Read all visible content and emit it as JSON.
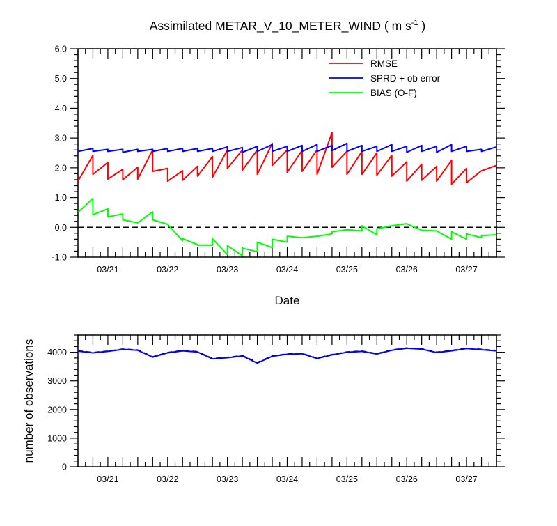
{
  "title": {
    "main": "Assimilated METAR_V_10_METER_WIND ( m s",
    "superscript": "-1",
    "close": " )"
  },
  "chart_data": [
    {
      "type": "line",
      "name": "top",
      "xlabel": "Date",
      "x_ticks": [
        "03/21",
        "03/22",
        "03/23",
        "03/24",
        "03/25",
        "03/26",
        "03/27"
      ],
      "x_tick_values": [
        0.5,
        1.5,
        2.5,
        3.5,
        4.5,
        5.5,
        6.5
      ],
      "xlim": [
        0,
        7
      ],
      "ylim": [
        -1.0,
        6.0
      ],
      "y_ticks": [
        "-1.0",
        "0.0",
        "1.0",
        "2.0",
        "3.0",
        "4.0",
        "5.0",
        "6.0"
      ],
      "reference_line": 0.0,
      "legend": {
        "placement": "top-right",
        "entries": [
          "RMSE",
          "SPRD + ob error",
          "BIAS (O-F)"
        ]
      },
      "series": [
        {
          "name": "RMSE",
          "color": "#ff0000",
          "points": [
            [
              0,
              1.55
            ],
            [
              0.25,
              2.42
            ],
            [
              0.25,
              1.78
            ],
            [
              0.5,
              2.18
            ],
            [
              0.5,
              1.62
            ],
            [
              0.75,
              1.95
            ],
            [
              0.75,
              1.6
            ],
            [
              1.0,
              2.02
            ],
            [
              1.0,
              1.62
            ],
            [
              1.25,
              2.6
            ],
            [
              1.25,
              1.88
            ],
            [
              1.5,
              1.98
            ],
            [
              1.5,
              1.55
            ],
            [
              1.75,
              1.9
            ],
            [
              1.75,
              1.58
            ],
            [
              2.0,
              2.05
            ],
            [
              2.0,
              1.72
            ],
            [
              2.25,
              2.38
            ],
            [
              2.25,
              1.68
            ],
            [
              2.5,
              2.6
            ],
            [
              2.5,
              1.98
            ],
            [
              2.75,
              2.6
            ],
            [
              2.75,
              1.92
            ],
            [
              3.0,
              2.6
            ],
            [
              3.0,
              1.78
            ],
            [
              3.25,
              2.82
            ],
            [
              3.25,
              2.08
            ],
            [
              3.5,
              2.6
            ],
            [
              3.5,
              1.85
            ],
            [
              3.75,
              2.58
            ],
            [
              3.75,
              1.88
            ],
            [
              4.0,
              2.6
            ],
            [
              4.0,
              1.78
            ],
            [
              4.25,
              3.18
            ],
            [
              4.25,
              2.02
            ],
            [
              4.5,
              2.55
            ],
            [
              4.5,
              1.78
            ],
            [
              4.75,
              2.55
            ],
            [
              4.75,
              1.78
            ],
            [
              5.0,
              2.5
            ],
            [
              5.0,
              1.75
            ],
            [
              5.25,
              2.42
            ],
            [
              5.25,
              1.72
            ],
            [
              5.5,
              2.2
            ],
            [
              5.5,
              1.55
            ],
            [
              5.75,
              2.12
            ],
            [
              5.75,
              1.58
            ],
            [
              6.0,
              2.05
            ],
            [
              6.0,
              1.55
            ],
            [
              6.25,
              2.25
            ],
            [
              6.25,
              1.45
            ],
            [
              6.5,
              1.98
            ],
            [
              6.5,
              1.5
            ],
            [
              6.75,
              1.9
            ],
            [
              7.0,
              2.08
            ]
          ]
        },
        {
          "name": "SPRD + ob error",
          "color": "#0000ff",
          "points": [
            [
              0,
              2.55
            ],
            [
              0.25,
              2.65
            ],
            [
              0.25,
              2.55
            ],
            [
              0.5,
              2.62
            ],
            [
              0.5,
              2.55
            ],
            [
              0.75,
              2.62
            ],
            [
              0.75,
              2.52
            ],
            [
              1.0,
              2.62
            ],
            [
              1.0,
              2.55
            ],
            [
              1.25,
              2.62
            ],
            [
              1.25,
              2.55
            ],
            [
              1.5,
              2.65
            ],
            [
              1.5,
              2.55
            ],
            [
              1.75,
              2.65
            ],
            [
              1.75,
              2.55
            ],
            [
              2.0,
              2.65
            ],
            [
              2.0,
              2.55
            ],
            [
              2.25,
              2.65
            ],
            [
              2.25,
              2.55
            ],
            [
              2.5,
              2.7
            ],
            [
              2.5,
              2.55
            ],
            [
              2.75,
              2.68
            ],
            [
              2.75,
              2.52
            ],
            [
              3.0,
              2.72
            ],
            [
              3.0,
              2.55
            ],
            [
              3.25,
              2.78
            ],
            [
              3.25,
              2.55
            ],
            [
              3.5,
              2.72
            ],
            [
              3.5,
              2.55
            ],
            [
              3.75,
              2.75
            ],
            [
              3.75,
              2.55
            ],
            [
              4.0,
              2.78
            ],
            [
              4.0,
              2.55
            ],
            [
              4.25,
              2.75
            ],
            [
              4.25,
              2.58
            ],
            [
              4.5,
              2.82
            ],
            [
              4.5,
              2.55
            ],
            [
              4.75,
              2.75
            ],
            [
              4.75,
              2.55
            ],
            [
              5.0,
              2.72
            ],
            [
              5.0,
              2.55
            ],
            [
              5.25,
              2.78
            ],
            [
              5.25,
              2.55
            ],
            [
              5.5,
              2.72
            ],
            [
              5.5,
              2.52
            ],
            [
              5.75,
              2.75
            ],
            [
              5.75,
              2.55
            ],
            [
              6.0,
              2.72
            ],
            [
              6.0,
              2.52
            ],
            [
              6.25,
              2.78
            ],
            [
              6.25,
              2.55
            ],
            [
              6.5,
              2.72
            ],
            [
              6.5,
              2.55
            ],
            [
              6.75,
              2.62
            ],
            [
              6.75,
              2.55
            ],
            [
              7.0,
              2.7
            ]
          ]
        },
        {
          "name": "BIAS (O-F)",
          "color": "#00ff00",
          "points": [
            [
              0,
              0.5
            ],
            [
              0.25,
              0.97
            ],
            [
              0.25,
              0.42
            ],
            [
              0.5,
              0.62
            ],
            [
              0.5,
              0.35
            ],
            [
              0.75,
              0.45
            ],
            [
              0.75,
              0.25
            ],
            [
              1.0,
              0.15
            ],
            [
              1.25,
              0.52
            ],
            [
              1.25,
              0.25
            ],
            [
              1.5,
              0.1
            ],
            [
              1.75,
              -0.45
            ],
            [
              1.75,
              -0.38
            ],
            [
              2.0,
              -0.58
            ],
            [
              2.0,
              -0.6
            ],
            [
              2.25,
              -0.6
            ],
            [
              2.25,
              -0.38
            ],
            [
              2.5,
              -0.92
            ],
            [
              2.5,
              -0.62
            ],
            [
              2.75,
              -0.95
            ],
            [
              2.75,
              -0.7
            ],
            [
              3.0,
              -0.82
            ],
            [
              3.0,
              -0.5
            ],
            [
              3.25,
              -0.68
            ],
            [
              3.25,
              -0.4
            ],
            [
              3.5,
              -0.5
            ],
            [
              3.5,
              -0.3
            ],
            [
              3.75,
              -0.35
            ],
            [
              4.0,
              -0.3
            ],
            [
              4.25,
              -0.22
            ],
            [
              4.25,
              -0.15
            ],
            [
              4.5,
              -0.08
            ],
            [
              4.75,
              -0.12
            ],
            [
              4.75,
              0.05
            ],
            [
              5.0,
              -0.25
            ],
            [
              5.0,
              -0.05
            ],
            [
              5.25,
              0.05
            ],
            [
              5.5,
              0.12
            ],
            [
              5.75,
              -0.1
            ],
            [
              6.0,
              -0.12
            ],
            [
              6.25,
              -0.4
            ],
            [
              6.25,
              -0.15
            ],
            [
              6.5,
              -0.4
            ],
            [
              6.5,
              -0.22
            ],
            [
              6.75,
              -0.35
            ],
            [
              6.75,
              -0.28
            ],
            [
              7.0,
              -0.25
            ]
          ]
        }
      ]
    },
    {
      "type": "line",
      "name": "bottom",
      "ylabel": "number of observations",
      "x_ticks": [
        "03/21",
        "03/22",
        "03/23",
        "03/24",
        "03/25",
        "03/26",
        "03/27"
      ],
      "x_tick_values": [
        0.5,
        1.5,
        2.5,
        3.5,
        4.5,
        5.5,
        6.5
      ],
      "xlim": [
        0,
        7
      ],
      "ylim": [
        0,
        4600
      ],
      "y_ticks": [
        "0",
        "1000",
        "2000",
        "3000",
        "4000"
      ],
      "y_tick_values": [
        0,
        1000,
        2000,
        3000,
        4000
      ],
      "series": [
        {
          "color": "#000000",
          "dash": true,
          "x": [
            0,
            0.25,
            0.5,
            0.75,
            1.0,
            1.25,
            1.5,
            1.75,
            2.0,
            2.25,
            2.5,
            2.75,
            3.0,
            3.25,
            3.5,
            3.75,
            4.0,
            4.25,
            4.5,
            4.75,
            5.0,
            5.25,
            5.5,
            5.75,
            6.0,
            6.25,
            6.5,
            6.75,
            7.0
          ],
          "values": [
            4050,
            3990,
            4040,
            4110,
            4080,
            3840,
            3990,
            4060,
            4020,
            3780,
            3820,
            3880,
            3640,
            3870,
            3940,
            3960,
            3790,
            3920,
            4010,
            4040,
            3950,
            4080,
            4150,
            4120,
            4000,
            4060,
            4140,
            4100,
            4060
          ]
        },
        {
          "color": "#0000ff",
          "dash": false,
          "x": [
            0,
            0.25,
            0.5,
            0.75,
            1.0,
            1.25,
            1.5,
            1.75,
            2.0,
            2.25,
            2.5,
            2.75,
            3.0,
            3.25,
            3.5,
            3.75,
            4.0,
            4.25,
            4.5,
            4.75,
            5.0,
            5.25,
            5.5,
            5.75,
            6.0,
            6.25,
            6.5,
            6.75,
            7.0
          ],
          "values": [
            4040,
            3980,
            4030,
            4100,
            4070,
            3830,
            3980,
            4050,
            4010,
            3770,
            3810,
            3870,
            3620,
            3860,
            3930,
            3950,
            3780,
            3910,
            4000,
            4030,
            3940,
            4070,
            4140,
            4110,
            3990,
            4050,
            4130,
            4090,
            4050
          ]
        }
      ]
    }
  ]
}
